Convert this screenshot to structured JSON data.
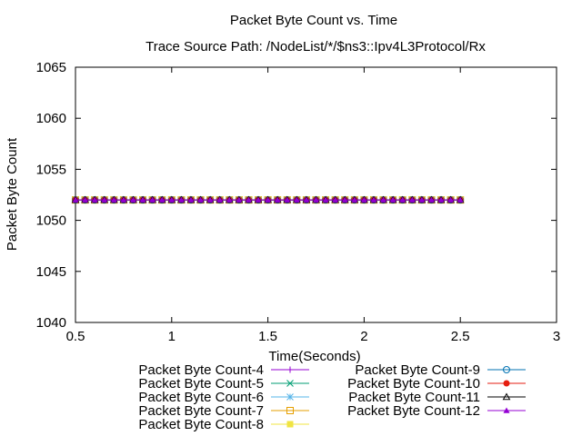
{
  "chart_data": {
    "type": "line",
    "title": "Packet Byte Count vs. Time",
    "subtitle": "Trace Source Path: /NodeList/*/$ns3::Ipv4L3Protocol/Rx",
    "xlabel": "Time(Seconds)",
    "ylabel": "Packet Byte Count",
    "xlim": [
      0.5,
      3
    ],
    "ylim": [
      1040,
      1065
    ],
    "xticks": [
      0.5,
      1,
      1.5,
      2,
      2.5,
      3
    ],
    "xtick_labels": [
      "0.5",
      "1",
      "1.5",
      "2",
      "2.5",
      "3"
    ],
    "yticks": [
      1040,
      1045,
      1050,
      1055,
      1060,
      1065
    ],
    "ytick_labels": [
      "1040",
      "1045",
      "1050",
      "1055",
      "1060",
      "1065"
    ],
    "grid": false,
    "legend_position": "bottom",
    "x_start": 0.5,
    "x_end": 2.5,
    "x_step": 0.05,
    "series": [
      {
        "name": "Packet Byte Count-4",
        "value": 1052,
        "color": "#9400d3",
        "marker": "plus"
      },
      {
        "name": "Packet Byte Count-5",
        "value": 1052,
        "color": "#009e73",
        "marker": "cross"
      },
      {
        "name": "Packet Byte Count-6",
        "value": 1052,
        "color": "#56b4e9",
        "marker": "star"
      },
      {
        "name": "Packet Byte Count-7",
        "value": 1052,
        "color": "#e69f00",
        "marker": "open-square"
      },
      {
        "name": "Packet Byte Count-8",
        "value": 1052,
        "color": "#f0e442",
        "marker": "filled-square"
      },
      {
        "name": "Packet Byte Count-9",
        "value": 1052,
        "color": "#0072b2",
        "marker": "open-circle"
      },
      {
        "name": "Packet Byte Count-10",
        "value": 1052,
        "color": "#e51e10",
        "marker": "filled-circle"
      },
      {
        "name": "Packet Byte Count-11",
        "value": 1052,
        "color": "#000000",
        "marker": "open-triangle"
      },
      {
        "name": "Packet Byte Count-12",
        "value": 1052,
        "color": "#9400d3",
        "marker": "filled-triangle"
      }
    ]
  }
}
